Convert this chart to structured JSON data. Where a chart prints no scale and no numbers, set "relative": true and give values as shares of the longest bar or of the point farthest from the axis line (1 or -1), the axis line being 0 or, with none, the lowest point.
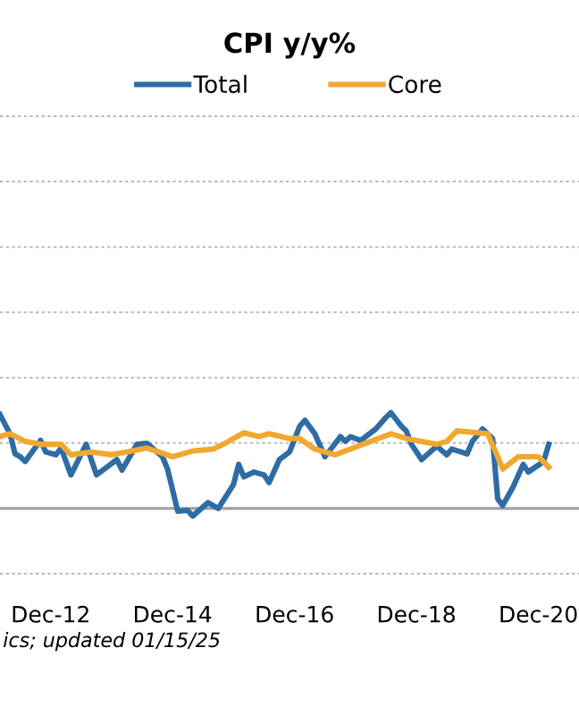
{
  "chart_data": {
    "type": "line",
    "title": "CPI y/y%",
    "relative": true,
    "legend": "top",
    "xlim": [
      "2012-02",
      "2021-08"
    ],
    "ref_lines": [
      {
        "axis": "y",
        "value": -0.683,
        "color": "#b0b0b0",
        "line_style": "dotted"
      },
      {
        "axis": "y",
        "value": 0.683,
        "color": "#b0b0b0",
        "line_style": "dotted"
      },
      {
        "axis": "y",
        "value": 1.366,
        "color": "#b0b0b0",
        "line_style": "dotted"
      },
      {
        "axis": "y",
        "value": 2.049,
        "color": "#b0b0b0",
        "line_style": "dotted"
      },
      {
        "axis": "y",
        "value": 2.732,
        "color": "#b0b0b0",
        "line_style": "dotted"
      },
      {
        "axis": "y",
        "value": 3.415,
        "color": "#b0b0b0",
        "line_style": "dotted"
      },
      {
        "axis": "y",
        "value": 4.098,
        "color": "#b0b0b0",
        "line_style": "dotted"
      }
    ],
    "xticks": [
      {
        "value": "2012-12",
        "label": "Dec-12"
      },
      {
        "value": "2014-12",
        "label": "Dec-14"
      },
      {
        "value": "2016-12",
        "label": "Dec-16"
      },
      {
        "value": "2018-12",
        "label": "Dec-18"
      },
      {
        "value": "2020-12",
        "label": "Dec-20"
      }
    ],
    "annotations": [
      "ics; updated 01/15/25"
    ],
    "series": [
      {
        "name": "Total",
        "color": "#2e6ca4",
        "x": [
          "2012-02",
          "2012-04",
          "2012-05",
          "2012-06",
          "2012-07",
          "2012-10",
          "2012-11",
          "2013-01",
          "2013-02",
          "2013-04",
          "2013-07",
          "2013-09",
          "2014-01",
          "2014-02",
          "2014-05",
          "2014-07",
          "2014-10",
          "2014-11",
          "2015-01",
          "2015-03",
          "2015-04",
          "2015-07",
          "2015-09",
          "2015-12",
          "2016-01",
          "2016-02",
          "2016-04",
          "2016-06",
          "2016-07",
          "2016-09",
          "2016-11",
          "2017-01",
          "2017-02",
          "2017-04",
          "2017-06",
          "2017-09",
          "2017-10",
          "2017-11",
          "2018-01",
          "2018-04",
          "2018-06",
          "2018-07",
          "2018-09",
          "2018-10",
          "2018-11",
          "2019-01",
          "2019-04",
          "2019-06",
          "2019-07",
          "2019-10",
          "2019-11",
          "2020-01",
          "2020-03",
          "2020-04",
          "2020-05",
          "2020-07",
          "2020-09",
          "2020-10",
          "2021-01",
          "2021-02"
        ],
        "values": [
          0.98,
          0.78,
          0.57,
          0.54,
          0.49,
          0.71,
          0.59,
          0.56,
          0.63,
          0.35,
          0.67,
          0.35,
          0.51,
          0.4,
          0.67,
          0.68,
          0.54,
          0.41,
          -0.03,
          -0.02,
          -0.08,
          0.06,
          0.0,
          0.25,
          0.46,
          0.33,
          0.38,
          0.35,
          0.27,
          0.51,
          0.59,
          0.86,
          0.92,
          0.78,
          0.54,
          0.75,
          0.7,
          0.75,
          0.71,
          0.83,
          0.95,
          1.0,
          0.86,
          0.81,
          0.67,
          0.51,
          0.65,
          0.56,
          0.62,
          0.57,
          0.7,
          0.83,
          0.73,
          0.1,
          0.03,
          0.22,
          0.46,
          0.38,
          0.49,
          0.67
        ]
      },
      {
        "name": "Core",
        "color": "#f0a830",
        "x": [
          "2012-02",
          "2012-04",
          "2012-07",
          "2012-10",
          "2013-02",
          "2013-04",
          "2013-08",
          "2013-12",
          "2014-03",
          "2014-07",
          "2014-12",
          "2015-04",
          "2015-08",
          "2015-10",
          "2016-02",
          "2016-05",
          "2016-07",
          "2016-11",
          "2017-01",
          "2017-04",
          "2017-08",
          "2017-11",
          "2018-03",
          "2018-07",
          "2018-10",
          "2019-04",
          "2019-06",
          "2019-08",
          "2020-02",
          "2020-04",
          "2020-05",
          "2020-08",
          "2020-12",
          "2021-02"
        ],
        "values": [
          0.75,
          0.78,
          0.7,
          0.67,
          0.67,
          0.56,
          0.59,
          0.56,
          0.59,
          0.63,
          0.54,
          0.6,
          0.62,
          0.67,
          0.79,
          0.75,
          0.78,
          0.73,
          0.73,
          0.62,
          0.56,
          0.62,
          0.7,
          0.78,
          0.73,
          0.67,
          0.7,
          0.81,
          0.78,
          0.54,
          0.41,
          0.54,
          0.54,
          0.43
        ]
      }
    ]
  }
}
